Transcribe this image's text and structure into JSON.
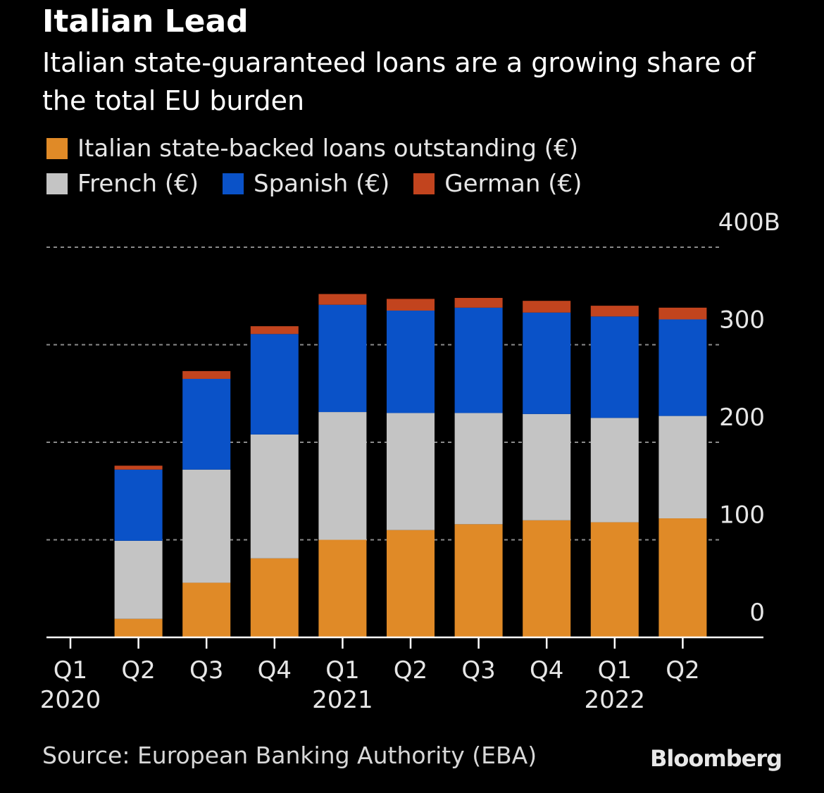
{
  "title": "Italian Lead",
  "subtitle": "Italian state-guaranteed loans are a growing share of the total EU burden",
  "legend": [
    {
      "label": "Italian state-backed loans outstanding (€)",
      "color": "#e08a27"
    },
    {
      "label": "French (€)",
      "color": "#c4c4c4"
    },
    {
      "label": "Spanish (€)",
      "color": "#0a52c8"
    },
    {
      "label": "German (€)",
      "color": "#c2441e"
    }
  ],
  "source": "Source: European Banking Authority (EBA)",
  "brand": "Bloomberg",
  "chart_data": {
    "type": "bar",
    "stacked": true,
    "categories": [
      "Q1 2020",
      "Q2 2020",
      "Q3 2020",
      "Q4 2020",
      "Q1 2021",
      "Q2 2021",
      "Q3 2021",
      "Q4 2021",
      "Q1 2022",
      "Q2 2022"
    ],
    "x_tick_labels": [
      {
        "quarter": "Q1",
        "year": "2020"
      },
      {
        "quarter": "Q2",
        "year": ""
      },
      {
        "quarter": "Q3",
        "year": ""
      },
      {
        "quarter": "Q4",
        "year": ""
      },
      {
        "quarter": "Q1",
        "year": "2021"
      },
      {
        "quarter": "Q2",
        "year": ""
      },
      {
        "quarter": "Q3",
        "year": ""
      },
      {
        "quarter": "Q4",
        "year": ""
      },
      {
        "quarter": "Q1",
        "year": "2022"
      },
      {
        "quarter": "Q2",
        "year": ""
      }
    ],
    "series": [
      {
        "name": "Italian state-backed loans outstanding (€)",
        "color": "#e08a27",
        "values": [
          0,
          19,
          56,
          81,
          100,
          110,
          116,
          120,
          118,
          122
        ]
      },
      {
        "name": "French (€)",
        "color": "#c4c4c4",
        "values": [
          0,
          80,
          116,
          127,
          131,
          120,
          114,
          109,
          107,
          105
        ]
      },
      {
        "name": "Spanish (€)",
        "color": "#0a52c8",
        "values": [
          0,
          73,
          93,
          103,
          110,
          105,
          108,
          104,
          104,
          99
        ]
      },
      {
        "name": "German (€)",
        "color": "#c2441e",
        "values": [
          0,
          4,
          8,
          8,
          11,
          12,
          10,
          12,
          11,
          12
        ]
      }
    ],
    "ylim": [
      0,
      400
    ],
    "y_ticks": [
      0,
      100,
      200,
      300,
      400
    ],
    "y_tick_labels": [
      "0",
      "100",
      "200",
      "300",
      "400B"
    ],
    "grid": true,
    "legend_position": "top-left",
    "xlabel": "",
    "ylabel": ""
  }
}
